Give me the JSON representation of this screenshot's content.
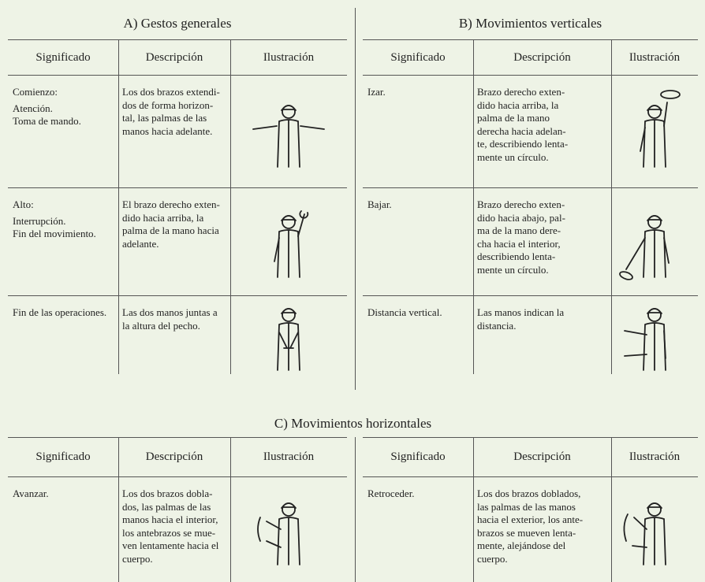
{
  "sections": [
    {
      "title": "A) Gestos generales",
      "headers": [
        "Significado",
        "Descripción",
        "Ilustración"
      ],
      "rows": [
        {
          "meaning": [
            "Comienzo:",
            "Atención.",
            "Toma de mando."
          ],
          "description": [
            "Los dos brazos extendi-",
            "dos de forma horizon-",
            "tal, las palmas de las",
            "manos hacia adelante."
          ]
        },
        {
          "meaning": [
            "Alto:",
            "Interrupción.",
            "Fin del movimiento."
          ],
          "description": [
            "El brazo derecho exten-",
            "dido hacia arriba, la",
            "palma de la mano hacia",
            "adelante."
          ]
        },
        {
          "meaning": [
            "Fin de las operaciones."
          ],
          "description": [
            "Las dos manos juntas a",
            "la altura del pecho."
          ]
        }
      ]
    },
    {
      "title": "B) Movimientos verticales",
      "headers": [
        "Significado",
        "Descripción",
        "Ilustración"
      ],
      "rows": [
        {
          "meaning": [
            "Izar."
          ],
          "description": [
            "Brazo derecho exten-",
            "dido hacia arriba, la",
            "palma de la mano",
            "derecha hacia adelan-",
            "te, describiendo lenta-",
            "mente un círculo."
          ]
        },
        {
          "meaning": [
            "Bajar."
          ],
          "description": [
            "Brazo derecho exten-",
            "dido hacia abajo, pal-",
            "ma de la mano dere-",
            "cha hacia el interior,",
            "describiendo lenta-",
            "mente un círculo."
          ]
        },
        {
          "meaning": [
            "Distancia vertical."
          ],
          "description": [
            "Las manos indican la",
            "distancia."
          ]
        }
      ]
    }
  ],
  "horizontal": {
    "title": "C) Movimientos horizontales",
    "tables": [
      {
        "headers": [
          "Significado",
          "Descripción",
          "Ilustración"
        ],
        "rows": [
          {
            "meaning": [
              "Avanzar."
            ],
            "description": [
              "Los dos brazos dobla-",
              "dos, las palmas de las",
              "manos hacia el interior,",
              "los antebrazos se mue-",
              "ven lentamente hacia el",
              "cuerpo."
            ]
          }
        ]
      },
      {
        "headers": [
          "Significado",
          "Descripción",
          "Ilustración"
        ],
        "rows": [
          {
            "meaning": [
              "Retroceder."
            ],
            "description": [
              "Los dos brazos doblados,",
              "las palmas de las manos",
              "hacia el exterior, los ante-",
              "brazos se mueven lenta-",
              "mente, alejándose del",
              "cuerpo."
            ]
          }
        ]
      }
    ]
  }
}
